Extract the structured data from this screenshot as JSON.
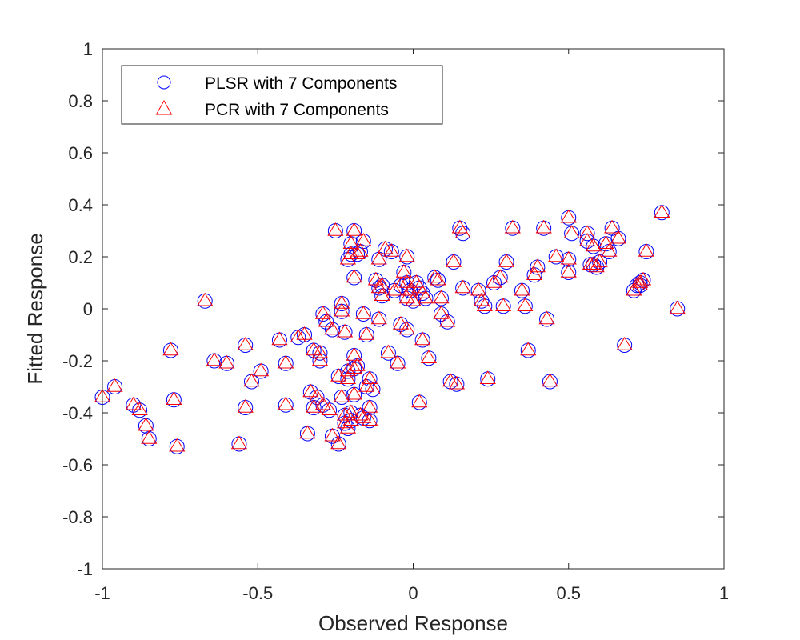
{
  "chart_data": {
    "type": "scatter",
    "title": "",
    "xlabel": "Observed Response",
    "ylabel": "Fitted Response",
    "xlim": [
      -1,
      1
    ],
    "ylim": [
      -1,
      1
    ],
    "x_ticks": [
      -1,
      -0.5,
      0,
      0.5,
      1
    ],
    "x_tick_labels": [
      "-1",
      "-0.5",
      "0",
      "0.5",
      "1"
    ],
    "y_ticks": [
      -1,
      -0.8,
      -0.6,
      -0.4,
      -0.2,
      0,
      0.2,
      0.4,
      0.6,
      0.8,
      1
    ],
    "y_tick_labels": [
      "-1",
      "-0.8",
      "-0.6",
      "-0.4",
      "-0.2",
      "0",
      "0.2",
      "0.4",
      "0.6",
      "0.8",
      "1"
    ],
    "grid": false,
    "legend_position": "top-left",
    "series": [
      {
        "name": "PLSR with 7 Components",
        "marker": "circle",
        "color": "#0000ff",
        "points": [
          [
            -1.0,
            -0.34
          ],
          [
            -0.96,
            -0.3
          ],
          [
            -0.9,
            -0.37
          ],
          [
            -0.88,
            -0.39
          ],
          [
            -0.86,
            -0.45
          ],
          [
            -0.85,
            -0.5
          ],
          [
            -0.78,
            -0.16
          ],
          [
            -0.77,
            -0.35
          ],
          [
            -0.76,
            -0.53
          ],
          [
            -0.67,
            0.03
          ],
          [
            -0.64,
            -0.2
          ],
          [
            -0.6,
            -0.21
          ],
          [
            -0.56,
            -0.52
          ],
          [
            -0.54,
            -0.14
          ],
          [
            -0.54,
            -0.38
          ],
          [
            -0.52,
            -0.28
          ],
          [
            -0.49,
            -0.24
          ],
          [
            -0.43,
            -0.12
          ],
          [
            -0.41,
            -0.37
          ],
          [
            -0.41,
            -0.21
          ],
          [
            -0.37,
            -0.11
          ],
          [
            -0.35,
            -0.1
          ],
          [
            -0.34,
            -0.48
          ],
          [
            -0.33,
            -0.32
          ],
          [
            -0.32,
            -0.38
          ],
          [
            -0.32,
            -0.16
          ],
          [
            -0.31,
            -0.34
          ],
          [
            -0.3,
            -0.2
          ],
          [
            -0.3,
            -0.17
          ],
          [
            -0.29,
            -0.02
          ],
          [
            -0.29,
            -0.37
          ],
          [
            -0.28,
            -0.05
          ],
          [
            -0.27,
            -0.39
          ],
          [
            -0.26,
            -0.49
          ],
          [
            -0.26,
            -0.08
          ],
          [
            -0.25,
            0.3
          ],
          [
            -0.24,
            -0.52
          ],
          [
            -0.24,
            -0.26
          ],
          [
            -0.23,
            0.02
          ],
          [
            -0.23,
            -0.01
          ],
          [
            -0.23,
            -0.34
          ],
          [
            -0.22,
            -0.09
          ],
          [
            -0.22,
            -0.41
          ],
          [
            -0.22,
            -0.44
          ],
          [
            -0.21,
            0.19
          ],
          [
            -0.21,
            -0.24
          ],
          [
            -0.21,
            -0.27
          ],
          [
            -0.21,
            -0.46
          ],
          [
            -0.2,
            0.21
          ],
          [
            -0.2,
            0.25
          ],
          [
            -0.2,
            -0.4
          ],
          [
            -0.2,
            -0.43
          ],
          [
            -0.19,
            0.3
          ],
          [
            -0.19,
            0.12
          ],
          [
            -0.19,
            -0.18
          ],
          [
            -0.19,
            -0.23
          ],
          [
            -0.19,
            -0.33
          ],
          [
            -0.18,
            0.21
          ],
          [
            -0.18,
            -0.22
          ],
          [
            -0.17,
            0.22
          ],
          [
            -0.17,
            -0.41
          ],
          [
            -0.16,
            0.26
          ],
          [
            -0.16,
            -0.02
          ],
          [
            -0.16,
            -0.42
          ],
          [
            -0.15,
            -0.1
          ],
          [
            -0.15,
            -0.3
          ],
          [
            -0.14,
            -0.27
          ],
          [
            -0.14,
            -0.43
          ],
          [
            -0.14,
            -0.38
          ],
          [
            -0.13,
            -0.31
          ],
          [
            -0.12,
            0.11
          ],
          [
            -0.11,
            0.19
          ],
          [
            -0.11,
            0.08
          ],
          [
            -0.11,
            -0.04
          ],
          [
            -0.1,
            0.05
          ],
          [
            -0.1,
            0.09
          ],
          [
            -0.09,
            0.23
          ],
          [
            -0.08,
            -0.17
          ],
          [
            -0.07,
            0.22
          ],
          [
            -0.06,
            0.07
          ],
          [
            -0.05,
            -0.21
          ],
          [
            -0.04,
            0.09
          ],
          [
            -0.04,
            -0.06
          ],
          [
            -0.03,
            0.14
          ],
          [
            -0.02,
            0.2
          ],
          [
            -0.02,
            0.1
          ],
          [
            -0.02,
            0.04
          ],
          [
            -0.02,
            -0.08
          ],
          [
            -0.01,
            0.07
          ],
          [
            0.0,
            0.03
          ],
          [
            0.01,
            0.1
          ],
          [
            0.02,
            0.08
          ],
          [
            0.02,
            -0.36
          ],
          [
            0.03,
            0.06
          ],
          [
            0.03,
            -0.12
          ],
          [
            0.04,
            0.04
          ],
          [
            0.05,
            -0.19
          ],
          [
            0.07,
            0.12
          ],
          [
            0.08,
            0.11
          ],
          [
            0.09,
            -0.02
          ],
          [
            0.09,
            0.04
          ],
          [
            0.11,
            -0.05
          ],
          [
            0.12,
            -0.28
          ],
          [
            0.13,
            0.18
          ],
          [
            0.14,
            -0.29
          ],
          [
            0.15,
            0.31
          ],
          [
            0.16,
            0.29
          ],
          [
            0.16,
            0.08
          ],
          [
            0.21,
            0.07
          ],
          [
            0.22,
            0.03
          ],
          [
            0.23,
            0.01
          ],
          [
            0.24,
            -0.27
          ],
          [
            0.26,
            0.1
          ],
          [
            0.28,
            0.12
          ],
          [
            0.29,
            0.01
          ],
          [
            0.3,
            0.18
          ],
          [
            0.32,
            0.31
          ],
          [
            0.35,
            0.07
          ],
          [
            0.36,
            0.01
          ],
          [
            0.37,
            -0.16
          ],
          [
            0.39,
            0.13
          ],
          [
            0.4,
            0.16
          ],
          [
            0.42,
            0.31
          ],
          [
            0.43,
            -0.04
          ],
          [
            0.44,
            -0.28
          ],
          [
            0.46,
            0.2
          ],
          [
            0.5,
            0.14
          ],
          [
            0.5,
            0.19
          ],
          [
            0.5,
            0.35
          ],
          [
            0.51,
            0.29
          ],
          [
            0.56,
            0.29
          ],
          [
            0.56,
            0.26
          ],
          [
            0.57,
            0.17
          ],
          [
            0.58,
            0.24
          ],
          [
            0.58,
            0.17
          ],
          [
            0.59,
            0.16
          ],
          [
            0.6,
            0.18
          ],
          [
            0.62,
            0.25
          ],
          [
            0.63,
            0.22
          ],
          [
            0.64,
            0.31
          ],
          [
            0.66,
            0.27
          ],
          [
            0.68,
            -0.14
          ],
          [
            0.71,
            0.07
          ],
          [
            0.72,
            0.09
          ],
          [
            0.73,
            0.09
          ],
          [
            0.73,
            0.1
          ],
          [
            0.74,
            0.11
          ],
          [
            0.75,
            0.22
          ],
          [
            0.8,
            0.37
          ],
          [
            0.85,
            0.0
          ]
        ]
      },
      {
        "name": "PCR with 7 Components",
        "marker": "triangle",
        "color": "#ff0000",
        "points": [
          [
            -1.0,
            -0.34
          ],
          [
            -0.96,
            -0.3
          ],
          [
            -0.9,
            -0.37
          ],
          [
            -0.88,
            -0.39
          ],
          [
            -0.86,
            -0.45
          ],
          [
            -0.85,
            -0.5
          ],
          [
            -0.78,
            -0.16
          ],
          [
            -0.77,
            -0.35
          ],
          [
            -0.76,
            -0.53
          ],
          [
            -0.67,
            0.03
          ],
          [
            -0.64,
            -0.2
          ],
          [
            -0.6,
            -0.21
          ],
          [
            -0.56,
            -0.52
          ],
          [
            -0.54,
            -0.14
          ],
          [
            -0.54,
            -0.38
          ],
          [
            -0.52,
            -0.28
          ],
          [
            -0.49,
            -0.24
          ],
          [
            -0.43,
            -0.12
          ],
          [
            -0.41,
            -0.37
          ],
          [
            -0.41,
            -0.21
          ],
          [
            -0.37,
            -0.11
          ],
          [
            -0.35,
            -0.1
          ],
          [
            -0.34,
            -0.48
          ],
          [
            -0.33,
            -0.32
          ],
          [
            -0.32,
            -0.38
          ],
          [
            -0.32,
            -0.16
          ],
          [
            -0.31,
            -0.34
          ],
          [
            -0.3,
            -0.2
          ],
          [
            -0.3,
            -0.17
          ],
          [
            -0.29,
            -0.02
          ],
          [
            -0.29,
            -0.37
          ],
          [
            -0.28,
            -0.05
          ],
          [
            -0.27,
            -0.39
          ],
          [
            -0.26,
            -0.49
          ],
          [
            -0.26,
            -0.08
          ],
          [
            -0.25,
            0.3
          ],
          [
            -0.24,
            -0.52
          ],
          [
            -0.24,
            -0.26
          ],
          [
            -0.23,
            0.02
          ],
          [
            -0.23,
            -0.01
          ],
          [
            -0.23,
            -0.34
          ],
          [
            -0.22,
            -0.09
          ],
          [
            -0.22,
            -0.41
          ],
          [
            -0.22,
            -0.44
          ],
          [
            -0.21,
            0.19
          ],
          [
            -0.21,
            -0.24
          ],
          [
            -0.21,
            -0.27
          ],
          [
            -0.21,
            -0.46
          ],
          [
            -0.2,
            0.21
          ],
          [
            -0.2,
            0.25
          ],
          [
            -0.2,
            -0.4
          ],
          [
            -0.2,
            -0.43
          ],
          [
            -0.19,
            0.3
          ],
          [
            -0.19,
            0.12
          ],
          [
            -0.19,
            -0.18
          ],
          [
            -0.19,
            -0.23
          ],
          [
            -0.19,
            -0.33
          ],
          [
            -0.18,
            0.21
          ],
          [
            -0.18,
            -0.22
          ],
          [
            -0.17,
            0.22
          ],
          [
            -0.17,
            -0.41
          ],
          [
            -0.16,
            0.26
          ],
          [
            -0.16,
            -0.02
          ],
          [
            -0.16,
            -0.42
          ],
          [
            -0.15,
            -0.1
          ],
          [
            -0.15,
            -0.3
          ],
          [
            -0.14,
            -0.27
          ],
          [
            -0.14,
            -0.43
          ],
          [
            -0.14,
            -0.38
          ],
          [
            -0.13,
            -0.31
          ],
          [
            -0.12,
            0.11
          ],
          [
            -0.11,
            0.19
          ],
          [
            -0.11,
            0.08
          ],
          [
            -0.11,
            -0.04
          ],
          [
            -0.1,
            0.05
          ],
          [
            -0.1,
            0.09
          ],
          [
            -0.09,
            0.23
          ],
          [
            -0.08,
            -0.17
          ],
          [
            -0.07,
            0.22
          ],
          [
            -0.06,
            0.07
          ],
          [
            -0.05,
            -0.21
          ],
          [
            -0.04,
            0.09
          ],
          [
            -0.04,
            -0.06
          ],
          [
            -0.03,
            0.14
          ],
          [
            -0.02,
            0.2
          ],
          [
            -0.02,
            0.1
          ],
          [
            -0.02,
            0.04
          ],
          [
            -0.02,
            -0.08
          ],
          [
            -0.01,
            0.07
          ],
          [
            0.0,
            0.03
          ],
          [
            0.01,
            0.1
          ],
          [
            0.02,
            0.08
          ],
          [
            0.02,
            -0.36
          ],
          [
            0.03,
            0.06
          ],
          [
            0.03,
            -0.12
          ],
          [
            0.04,
            0.04
          ],
          [
            0.05,
            -0.19
          ],
          [
            0.07,
            0.12
          ],
          [
            0.08,
            0.11
          ],
          [
            0.09,
            -0.02
          ],
          [
            0.09,
            0.04
          ],
          [
            0.11,
            -0.05
          ],
          [
            0.12,
            -0.28
          ],
          [
            0.13,
            0.18
          ],
          [
            0.14,
            -0.29
          ],
          [
            0.15,
            0.31
          ],
          [
            0.16,
            0.29
          ],
          [
            0.16,
            0.08
          ],
          [
            0.21,
            0.07
          ],
          [
            0.22,
            0.03
          ],
          [
            0.23,
            0.01
          ],
          [
            0.24,
            -0.27
          ],
          [
            0.26,
            0.1
          ],
          [
            0.28,
            0.12
          ],
          [
            0.29,
            0.01
          ],
          [
            0.3,
            0.18
          ],
          [
            0.32,
            0.31
          ],
          [
            0.35,
            0.07
          ],
          [
            0.36,
            0.01
          ],
          [
            0.37,
            -0.16
          ],
          [
            0.39,
            0.13
          ],
          [
            0.4,
            0.16
          ],
          [
            0.42,
            0.31
          ],
          [
            0.43,
            -0.04
          ],
          [
            0.44,
            -0.28
          ],
          [
            0.46,
            0.2
          ],
          [
            0.5,
            0.14
          ],
          [
            0.5,
            0.19
          ],
          [
            0.5,
            0.35
          ],
          [
            0.51,
            0.29
          ],
          [
            0.56,
            0.29
          ],
          [
            0.56,
            0.26
          ],
          [
            0.57,
            0.17
          ],
          [
            0.58,
            0.24
          ],
          [
            0.58,
            0.17
          ],
          [
            0.59,
            0.16
          ],
          [
            0.6,
            0.18
          ],
          [
            0.62,
            0.25
          ],
          [
            0.63,
            0.22
          ],
          [
            0.64,
            0.31
          ],
          [
            0.66,
            0.27
          ],
          [
            0.68,
            -0.14
          ],
          [
            0.71,
            0.07
          ],
          [
            0.72,
            0.09
          ],
          [
            0.73,
            0.09
          ],
          [
            0.73,
            0.1
          ],
          [
            0.74,
            0.11
          ],
          [
            0.75,
            0.22
          ],
          [
            0.8,
            0.37
          ],
          [
            0.85,
            0.0
          ]
        ]
      }
    ]
  }
}
